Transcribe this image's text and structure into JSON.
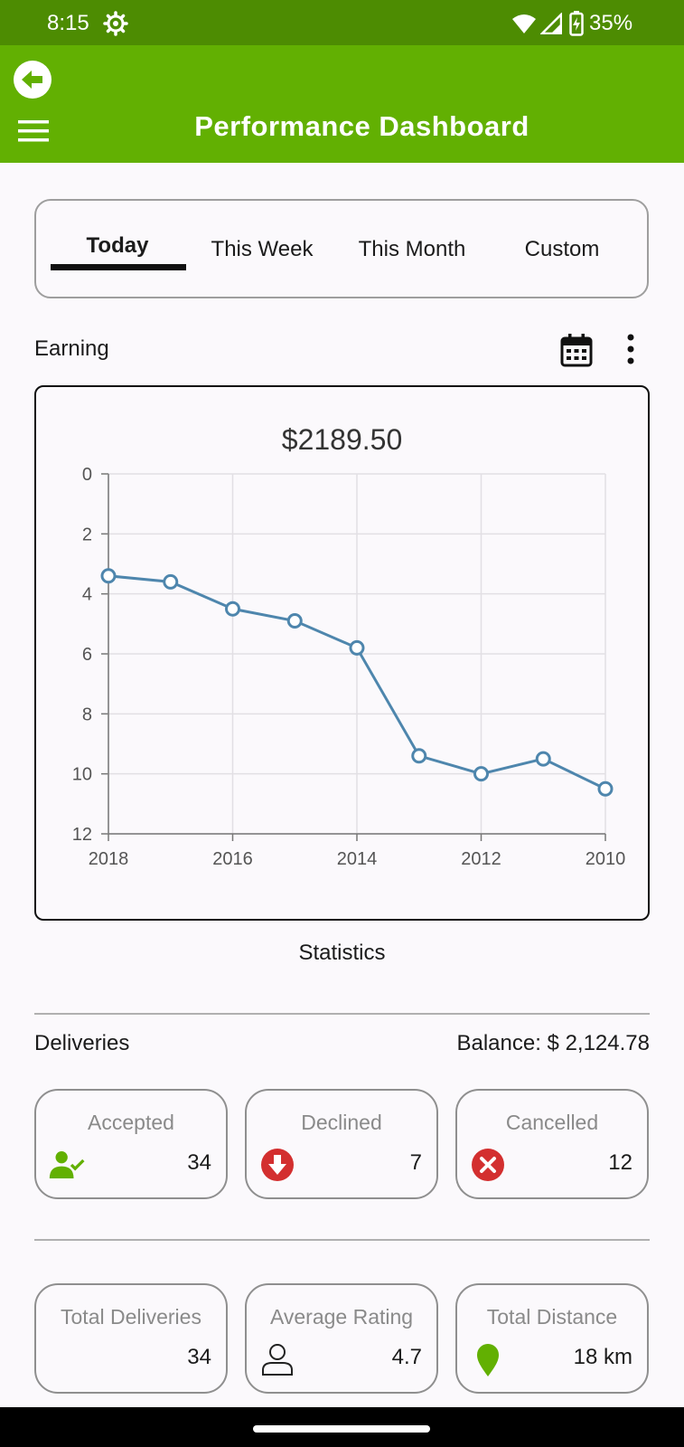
{
  "status_bar": {
    "time": "8:15",
    "battery_text": "35%"
  },
  "header": {
    "title": "Performance Dashboard"
  },
  "tabs": [
    {
      "label": "Today",
      "active": true
    },
    {
      "label": "This Week",
      "active": false
    },
    {
      "label": "This Month",
      "active": false
    },
    {
      "label": "Custom",
      "active": false
    }
  ],
  "earning": {
    "label": "Earning",
    "amount": "$2189.50"
  },
  "chart_data": {
    "type": "line",
    "x": [
      "2018",
      "",
      "2016",
      "",
      "2014",
      "",
      "2012",
      "",
      "2010"
    ],
    "xticks": [
      "2018",
      "2016",
      "2014",
      "2012",
      "2010"
    ],
    "values": [
      3.4,
      3.6,
      4.5,
      4.9,
      5.8,
      9.4,
      10.0,
      9.5,
      10.5
    ],
    "yticks": [
      "0",
      "2",
      "4",
      "6",
      "8",
      "10",
      "12"
    ],
    "ylim": [
      0,
      12
    ],
    "y_inverted": true,
    "grid": true,
    "line_color": "#4e86ad"
  },
  "statistics_label": "Statistics",
  "deliveries": {
    "label": "Deliveries",
    "balance": "Balance: $ 2,124.78",
    "cards": [
      {
        "label": "Accepted",
        "value": "34",
        "icon": "user-check-icon",
        "color": "#62b002"
      },
      {
        "label": "Declined",
        "value": "7",
        "icon": "arrow-down-circle-icon",
        "color": "#d32f2f"
      },
      {
        "label": "Cancelled",
        "value": "12",
        "icon": "close-circle-icon",
        "color": "#d32f2f"
      }
    ]
  },
  "summary": {
    "cards": [
      {
        "label": "Total Deliveries",
        "value": "34"
      },
      {
        "label": "Average Rating",
        "value": "4.7",
        "icon": "user-outline-icon"
      },
      {
        "label": "Total Distance",
        "value": "18 km",
        "icon": "location-pin-icon",
        "color": "#62b002"
      }
    ]
  }
}
